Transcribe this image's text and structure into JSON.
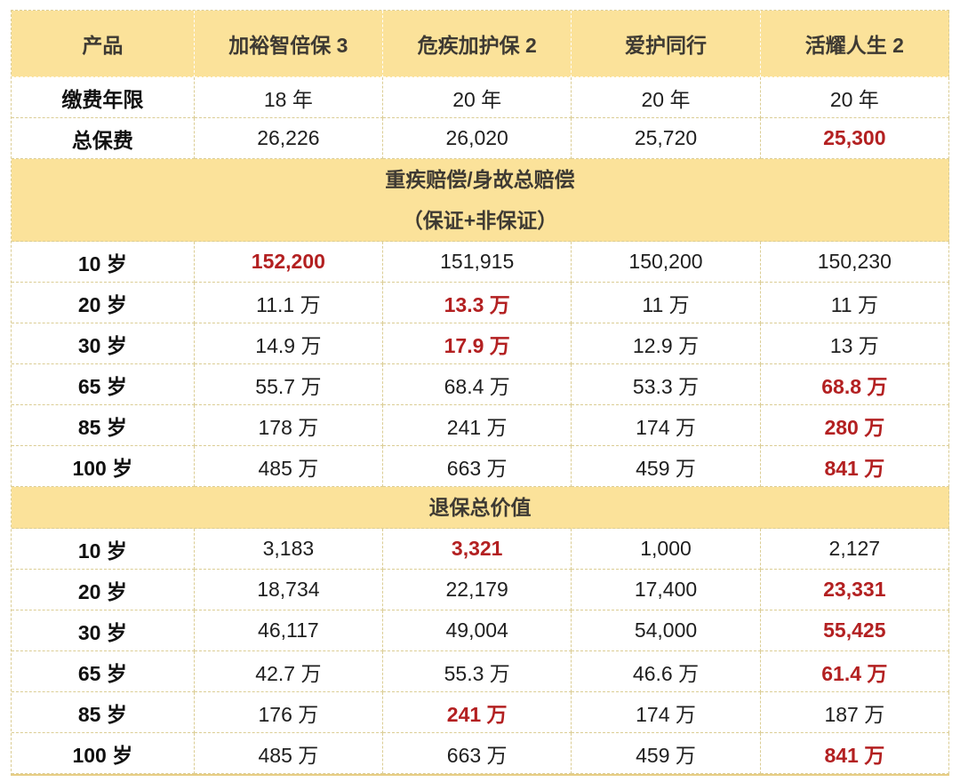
{
  "colors": {
    "header_bg": "#FBE29A",
    "border_dash": "#DBCD94",
    "highlight_red": "#B32021",
    "header_text": "#3E3A33",
    "body_text": "#1F1F1F"
  },
  "table": {
    "corner_label": "产品",
    "products": [
      "加裕智倍保 3",
      "危疾加护保 2",
      "爱护同行",
      "活耀人生 2"
    ],
    "info_rows": [
      {
        "label": "缴费年限",
        "values": [
          "18 年",
          "20 年",
          "20 年",
          "20 年"
        ],
        "red": [
          false,
          false,
          false,
          false
        ]
      },
      {
        "label": "总保费",
        "values": [
          "26,226",
          "26,020",
          "25,720",
          "25,300"
        ],
        "red": [
          false,
          false,
          false,
          true
        ]
      }
    ],
    "sections": [
      {
        "title_lines": [
          "重疾赔偿/身故总赔偿",
          "（保证+非保证）"
        ],
        "rows": [
          {
            "label": "10 岁",
            "values": [
              "152,200",
              "151,915",
              "150,200",
              "150,230"
            ],
            "red": [
              true,
              false,
              false,
              false
            ]
          },
          {
            "label": "20 岁",
            "values": [
              "11.1 万",
              "13.3 万",
              "11 万",
              "11 万"
            ],
            "red": [
              false,
              true,
              false,
              false
            ]
          },
          {
            "label": "30 岁",
            "values": [
              "14.9 万",
              "17.9 万",
              "12.9 万",
              "13 万"
            ],
            "red": [
              false,
              true,
              false,
              false
            ]
          },
          {
            "label": "65 岁",
            "values": [
              "55.7 万",
              "68.4 万",
              "53.3 万",
              "68.8 万"
            ],
            "red": [
              false,
              false,
              false,
              true
            ]
          },
          {
            "label": "85 岁",
            "values": [
              "178 万",
              "241 万",
              "174 万",
              "280 万"
            ],
            "red": [
              false,
              false,
              false,
              true
            ]
          },
          {
            "label": "100 岁",
            "values": [
              "485 万",
              "663 万",
              "459 万",
              "841 万"
            ],
            "red": [
              false,
              false,
              false,
              true
            ]
          }
        ]
      },
      {
        "title_lines": [
          "退保总价值"
        ],
        "rows": [
          {
            "label": "10 岁",
            "values": [
              "3,183",
              "3,321",
              "1,000",
              "2,127"
            ],
            "red": [
              false,
              true,
              false,
              false
            ]
          },
          {
            "label": "20 岁",
            "values": [
              "18,734",
              "22,179",
              "17,400",
              "23,331"
            ],
            "red": [
              false,
              false,
              false,
              true
            ]
          },
          {
            "label": "30 岁",
            "values": [
              "46,117",
              "49,004",
              "54,000",
              "55,425"
            ],
            "red": [
              false,
              false,
              false,
              true
            ]
          },
          {
            "label": "65 岁",
            "values": [
              "42.7 万",
              "55.3 万",
              "46.6 万",
              "61.4 万"
            ],
            "red": [
              false,
              false,
              false,
              true
            ]
          },
          {
            "label": "85 岁",
            "values": [
              "176 万",
              "241 万",
              "174 万",
              "187 万"
            ],
            "red": [
              false,
              true,
              false,
              false
            ]
          },
          {
            "label": "100 岁",
            "values": [
              "485 万",
              "663 万",
              "459 万",
              "841 万"
            ],
            "red": [
              false,
              false,
              false,
              true
            ]
          }
        ]
      }
    ]
  }
}
